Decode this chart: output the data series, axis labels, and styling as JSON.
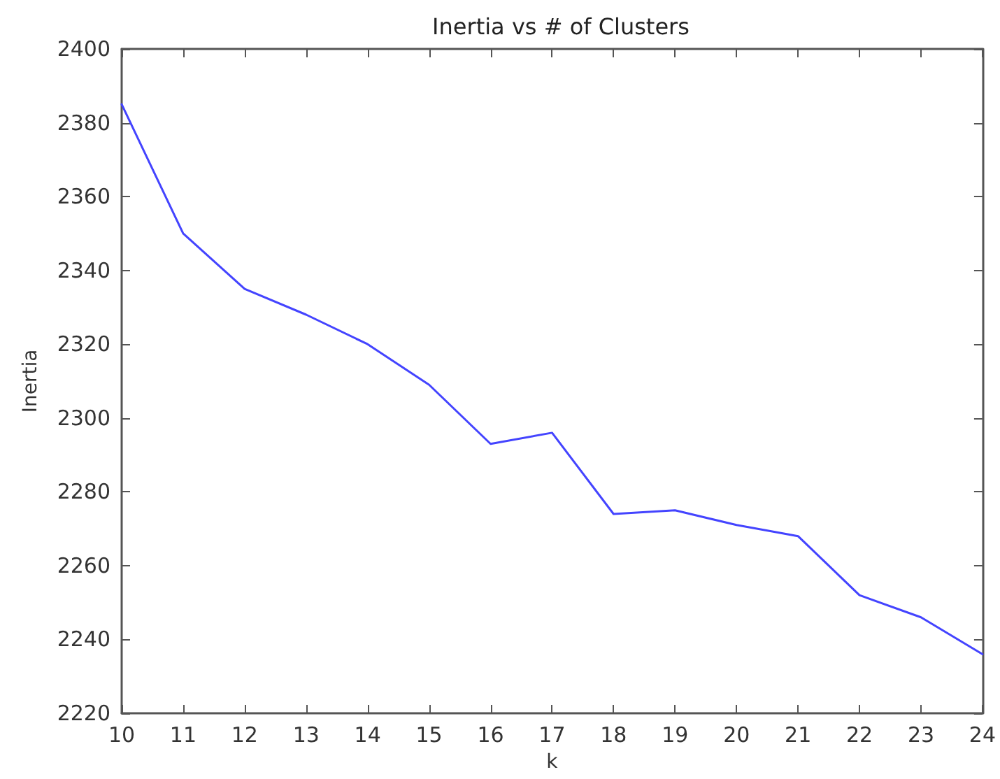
{
  "chart_data": {
    "type": "line",
    "title": "Inertia vs # of Clusters",
    "xlabel": "k",
    "ylabel": "Inertia",
    "x": [
      10,
      11,
      12,
      13,
      14,
      15,
      16,
      17,
      18,
      19,
      20,
      21,
      22,
      23,
      24
    ],
    "values": [
      2385,
      2350,
      2335,
      2328,
      2320,
      2309,
      2293,
      2296,
      2274,
      2275,
      2271,
      2268,
      2252,
      2246,
      2236
    ],
    "color": "#4444ff",
    "marker": "none",
    "line_style": "solid",
    "grid": false,
    "xlim": [
      10,
      24
    ],
    "xticks": [
      10,
      11,
      12,
      13,
      14,
      15,
      16,
      17,
      18,
      19,
      20,
      21,
      22,
      23,
      24
    ],
    "ylim": [
      2220,
      2400
    ],
    "yticks": [
      2220,
      2240,
      2260,
      2280,
      2300,
      2320,
      2340,
      2360,
      2380,
      2400
    ]
  }
}
